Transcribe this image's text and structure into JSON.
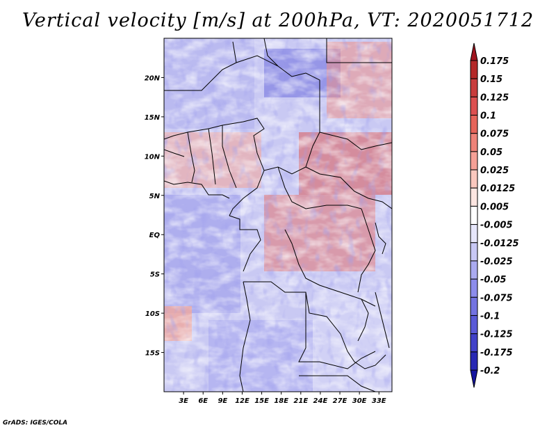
{
  "chart_data": {
    "type": "heatmap",
    "title": "Vertical velocity [m/s] at 200hPa, VT: 2020051712",
    "variable": "Vertical velocity",
    "units": "m/s",
    "level": "200hPa",
    "valid_time": "2020051712",
    "x_range_deg": [
      0,
      35
    ],
    "y_range_deg": [
      -20,
      25
    ],
    "x_ticks": [
      {
        "value": 3,
        "label": "3E"
      },
      {
        "value": 6,
        "label": "6E"
      },
      {
        "value": 9,
        "label": "9E"
      },
      {
        "value": 12,
        "label": "12E"
      },
      {
        "value": 15,
        "label": "15E"
      },
      {
        "value": 18,
        "label": "18E"
      },
      {
        "value": 21,
        "label": "21E"
      },
      {
        "value": 24,
        "label": "24E"
      },
      {
        "value": 27,
        "label": "27E"
      },
      {
        "value": 30,
        "label": "30E"
      },
      {
        "value": 33,
        "label": "33E"
      }
    ],
    "y_ticks": [
      {
        "value": 20,
        "label": "20N"
      },
      {
        "value": 15,
        "label": "15N"
      },
      {
        "value": 10,
        "label": "10N"
      },
      {
        "value": 5,
        "label": "5N"
      },
      {
        "value": 0,
        "label": "EQ"
      },
      {
        "value": -5,
        "label": "5S"
      },
      {
        "value": -10,
        "label": "10S"
      },
      {
        "value": -15,
        "label": "15S"
      }
    ],
    "colorbar": {
      "labels": [
        "0.175",
        "0.15",
        "0.125",
        "0.1",
        "0.075",
        "0.05",
        "0.025",
        "0.0125",
        "0.005",
        "-0.005",
        "-0.0125",
        "-0.025",
        "-0.05",
        "-0.075",
        "-0.1",
        "-0.125",
        "-0.175",
        "-0.2"
      ],
      "colors": [
        "#a0141e",
        "#b42828",
        "#c83c3c",
        "#dc5050",
        "#e6645a",
        "#ee8278",
        "#f5a096",
        "#fac8be",
        "#fde6e1",
        "#ffffff",
        "#e6e6fa",
        "#c8c8f5",
        "#aaaaf0",
        "#8c8ceb",
        "#7373e1",
        "#5a5ad7",
        "#4141c8",
        "#2828b4",
        "#1414a0"
      ]
    }
  },
  "credit": "GrADS: IGES/COLA"
}
